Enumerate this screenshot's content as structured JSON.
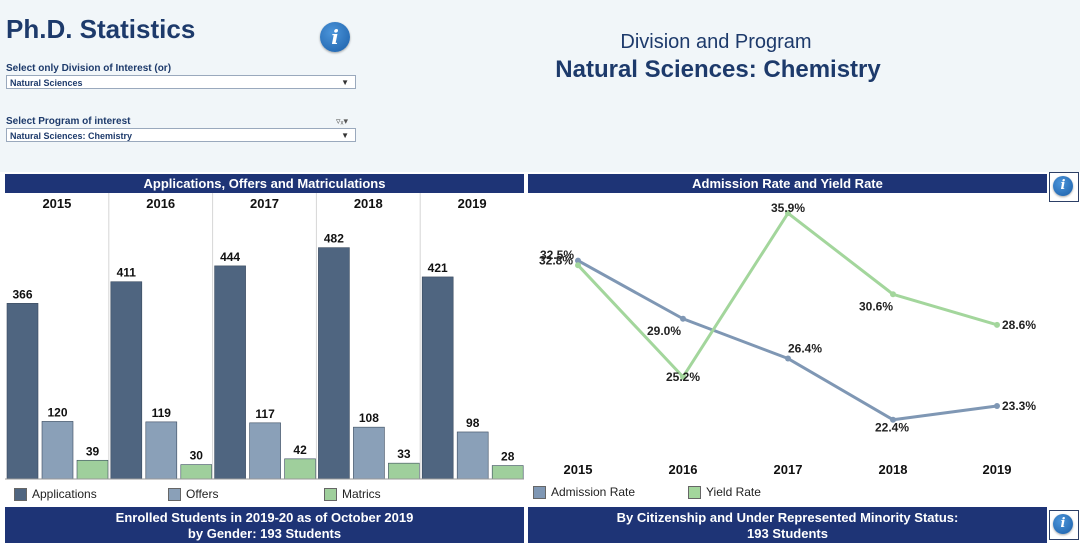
{
  "page": {
    "title": "Ph.D. Statistics",
    "division_label": "Select only Division of Interest (or)",
    "division_value": "Natural Sciences",
    "program_label": "Select Program of interest",
    "program_value": "Natural Sciences: Chemistry",
    "header_line1": "Division and Program",
    "header_line2": "Natural Sciences: Chemistry",
    "icons": [
      "info-icon",
      "filter-icon",
      "chevron-down-icon"
    ]
  },
  "bottom": {
    "left_line1": "Enrolled Students in 2019-20 as of October 2019",
    "left_line2": "by Gender: 193 Students",
    "right_line1": "By Citizenship and Under Represented Minority Status:",
    "right_line2": "193 Students"
  },
  "chart_data": [
    {
      "type": "bar",
      "title": "Applications, Offers and Matriculations",
      "categories": [
        "2015",
        "2016",
        "2017",
        "2018",
        "2019"
      ],
      "series": [
        {
          "name": "Applications",
          "values": [
            366,
            411,
            444,
            482,
            421
          ],
          "color": "#4f6580"
        },
        {
          "name": "Offers",
          "values": [
            120,
            119,
            117,
            108,
            98
          ],
          "color": "#8aa0b8"
        },
        {
          "name": "Matrics",
          "values": [
            39,
            30,
            42,
            33,
            28
          ],
          "color": "#9fcf9c"
        }
      ],
      "ylim": [
        0,
        500
      ],
      "grid": false,
      "legend": "bottom"
    },
    {
      "type": "line",
      "title": "Admission Rate and Yield Rate",
      "x": [
        "2015",
        "2016",
        "2017",
        "2018",
        "2019"
      ],
      "series": [
        {
          "name": "Admission Rate",
          "values": [
            32.8,
            29.0,
            26.4,
            22.4,
            23.3
          ],
          "labels": [
            "32.8%",
            "29.0%",
            "26.4%",
            "22.4%",
            "23.3%"
          ],
          "color": "#7f97b4"
        },
        {
          "name": "Yield Rate",
          "values": [
            32.5,
            25.2,
            35.9,
            30.6,
            28.6
          ],
          "labels": [
            "32.5%",
            "25.2%",
            "35.9%",
            "30.6%",
            "28.6%"
          ],
          "color": "#a3d69c"
        }
      ],
      "grid": false,
      "legend": "bottom"
    }
  ]
}
